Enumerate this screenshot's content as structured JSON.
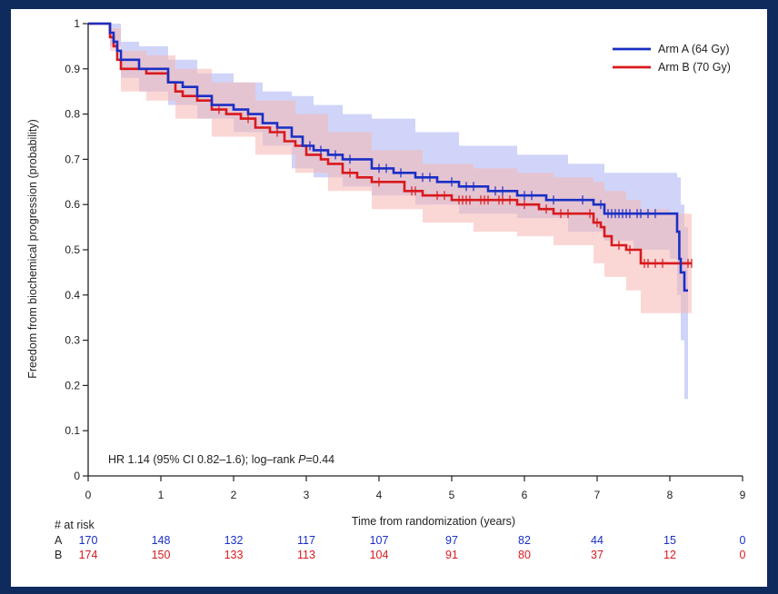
{
  "chart_data": {
    "type": "line",
    "subtype": "kaplan-meier",
    "title": "",
    "xlabel": "Time from randomization (years)",
    "ylabel": "Freedom from biochemical progression (probability)",
    "xlim": [
      0,
      9
    ],
    "ylim": [
      0,
      1
    ],
    "x_ticks": [
      0,
      1,
      2,
      3,
      4,
      5,
      6,
      7,
      8,
      9
    ],
    "y_ticks": [
      0,
      0.1,
      0.2,
      0.3,
      0.4,
      0.5,
      0.6,
      0.7,
      0.8,
      0.9,
      1
    ],
    "x_tick_labels": [
      "0",
      "1",
      "2",
      "3",
      "4",
      "5",
      "6",
      "7",
      "8",
      "9"
    ],
    "y_tick_labels": [
      "0",
      "0.1",
      "0.2",
      "0.3",
      "0.4",
      "0.5",
      "0.6",
      "0.7",
      "0.8",
      "0.9",
      "1"
    ],
    "grid": false,
    "legend_position": "top-right",
    "annotation": {
      "prefix": "HR 1.14  (95% CI  0.82–1.6);  log–rank ",
      "p_symbol": "P",
      "p_value": "=0.44"
    },
    "series": [
      {
        "name": "Arm A (64 Gy)",
        "color": "#1a2fc4",
        "band_color": "#aab0f2",
        "steps": [
          [
            0,
            1
          ],
          [
            0.3,
            0.98
          ],
          [
            0.35,
            0.96
          ],
          [
            0.4,
            0.94
          ],
          [
            0.45,
            0.92
          ],
          [
            0.6,
            0.92
          ],
          [
            0.7,
            0.9
          ],
          [
            1.1,
            0.87
          ],
          [
            1.3,
            0.86
          ],
          [
            1.5,
            0.84
          ],
          [
            1.7,
            0.82
          ],
          [
            2.0,
            0.81
          ],
          [
            2.2,
            0.8
          ],
          [
            2.4,
            0.78
          ],
          [
            2.6,
            0.77
          ],
          [
            2.8,
            0.75
          ],
          [
            2.95,
            0.73
          ],
          [
            3.1,
            0.72
          ],
          [
            3.3,
            0.71
          ],
          [
            3.5,
            0.7
          ],
          [
            3.7,
            0.7
          ],
          [
            3.9,
            0.68
          ],
          [
            4.2,
            0.67
          ],
          [
            4.5,
            0.66
          ],
          [
            4.8,
            0.65
          ],
          [
            5.1,
            0.64
          ],
          [
            5.5,
            0.63
          ],
          [
            5.9,
            0.62
          ],
          [
            6.3,
            0.61
          ],
          [
            6.6,
            0.61
          ],
          [
            6.95,
            0.6
          ],
          [
            7.1,
            0.58
          ],
          [
            7.5,
            0.58
          ],
          [
            8.05,
            0.58
          ],
          [
            8.1,
            0.54
          ],
          [
            8.13,
            0.48
          ],
          [
            8.15,
            0.45
          ],
          [
            8.2,
            0.41
          ],
          [
            8.25,
            0.41
          ]
        ],
        "band": {
          "x": [
            0,
            0.3,
            0.45,
            0.7,
            1.1,
            1.5,
            2.0,
            2.4,
            2.8,
            3.1,
            3.5,
            3.9,
            4.5,
            5.1,
            5.9,
            6.6,
            7.1,
            7.5,
            8.0,
            8.1,
            8.15,
            8.2,
            8.25
          ],
          "upper": [
            1,
            1.0,
            0.96,
            0.95,
            0.92,
            0.89,
            0.87,
            0.85,
            0.84,
            0.82,
            0.8,
            0.79,
            0.76,
            0.73,
            0.71,
            0.69,
            0.67,
            0.67,
            0.67,
            0.66,
            0.6,
            0.55,
            0.55
          ],
          "lower": [
            1,
            0.95,
            0.88,
            0.85,
            0.82,
            0.79,
            0.76,
            0.73,
            0.68,
            0.66,
            0.64,
            0.62,
            0.6,
            0.58,
            0.57,
            0.54,
            0.52,
            0.5,
            0.48,
            0.4,
            0.3,
            0.17,
            0.17
          ]
        }
      },
      {
        "name": "Arm B (70 Gy)",
        "color": "#d8191c",
        "band_color": "#f6b6b2",
        "steps": [
          [
            0,
            1
          ],
          [
            0.3,
            0.97
          ],
          [
            0.35,
            0.95
          ],
          [
            0.4,
            0.92
          ],
          [
            0.45,
            0.9
          ],
          [
            0.6,
            0.9
          ],
          [
            0.8,
            0.89
          ],
          [
            1.1,
            0.87
          ],
          [
            1.2,
            0.85
          ],
          [
            1.3,
            0.84
          ],
          [
            1.5,
            0.83
          ],
          [
            1.7,
            0.81
          ],
          [
            1.9,
            0.8
          ],
          [
            2.1,
            0.79
          ],
          [
            2.3,
            0.77
          ],
          [
            2.5,
            0.76
          ],
          [
            2.7,
            0.74
          ],
          [
            2.85,
            0.73
          ],
          [
            3.0,
            0.71
          ],
          [
            3.2,
            0.7
          ],
          [
            3.3,
            0.69
          ],
          [
            3.5,
            0.67
          ],
          [
            3.7,
            0.66
          ],
          [
            3.9,
            0.65
          ],
          [
            4.2,
            0.65
          ],
          [
            4.35,
            0.63
          ],
          [
            4.6,
            0.62
          ],
          [
            5.0,
            0.61
          ],
          [
            5.3,
            0.61
          ],
          [
            5.6,
            0.61
          ],
          [
            5.9,
            0.6
          ],
          [
            6.2,
            0.59
          ],
          [
            6.4,
            0.58
          ],
          [
            6.8,
            0.58
          ],
          [
            6.95,
            0.56
          ],
          [
            7.05,
            0.55
          ],
          [
            7.1,
            0.53
          ],
          [
            7.2,
            0.51
          ],
          [
            7.4,
            0.5
          ],
          [
            7.55,
            0.5
          ],
          [
            7.6,
            0.47
          ],
          [
            8.0,
            0.47
          ],
          [
            8.3,
            0.47
          ]
        ],
        "band": {
          "x": [
            0,
            0.3,
            0.45,
            0.8,
            1.2,
            1.7,
            2.3,
            2.85,
            3.3,
            3.9,
            4.6,
            5.3,
            5.9,
            6.4,
            6.95,
            7.1,
            7.4,
            7.6,
            8.0,
            8.3
          ],
          "upper": [
            1,
            0.99,
            0.94,
            0.93,
            0.9,
            0.87,
            0.83,
            0.8,
            0.76,
            0.72,
            0.69,
            0.68,
            0.67,
            0.66,
            0.65,
            0.63,
            0.61,
            0.59,
            0.58,
            0.58
          ],
          "lower": [
            1,
            0.94,
            0.85,
            0.83,
            0.79,
            0.75,
            0.71,
            0.67,
            0.63,
            0.59,
            0.56,
            0.54,
            0.53,
            0.51,
            0.47,
            0.44,
            0.41,
            0.36,
            0.36,
            0.36
          ]
        }
      }
    ],
    "censor_marks": {
      "Arm A (64 Gy)": [
        2.6,
        3.05,
        3.2,
        3.4,
        3.6,
        4.0,
        4.1,
        4.3,
        4.6,
        4.7,
        5.0,
        5.2,
        5.3,
        5.6,
        5.7,
        6.0,
        6.1,
        6.4,
        6.8,
        7.05,
        7.15,
        7.2,
        7.25,
        7.3,
        7.35,
        7.4,
        7.45,
        7.55,
        7.6,
        7.7,
        7.8
      ],
      "Arm B (70 Gy)": [
        1.8,
        2.2,
        2.6,
        3.6,
        4.0,
        4.45,
        4.5,
        4.8,
        4.9,
        5.1,
        5.15,
        5.2,
        5.25,
        5.4,
        5.45,
        5.5,
        5.65,
        5.7,
        5.8,
        6.0,
        6.3,
        6.5,
        6.6,
        6.9,
        7.0,
        7.3,
        7.45,
        7.65,
        7.7,
        7.8,
        7.9,
        8.25,
        8.3
      ]
    },
    "at_risk": {
      "header": "# at risk",
      "times": [
        0,
        1,
        2,
        3,
        4,
        5,
        6,
        7,
        8,
        9
      ],
      "rows": [
        {
          "label": "A",
          "color": "#1a2fc4",
          "values": [
            "170",
            "148",
            "132",
            "117",
            "107",
            "97",
            "82",
            "44",
            "15",
            "0"
          ]
        },
        {
          "label": "B",
          "color": "#d8191c",
          "values": [
            "174",
            "150",
            "133",
            "113",
            "104",
            "91",
            "80",
            "37",
            "12",
            "0"
          ]
        }
      ]
    }
  }
}
